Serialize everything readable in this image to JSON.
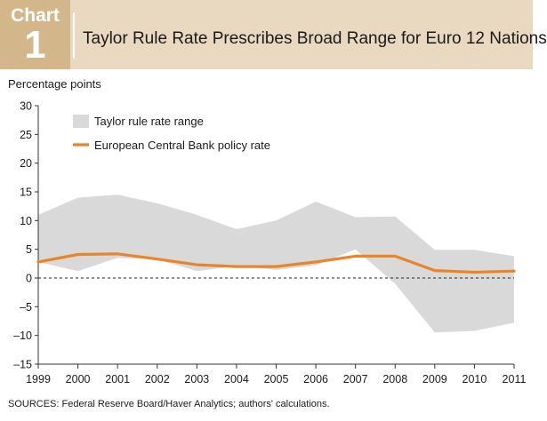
{
  "header": {
    "badge_word": "Chart",
    "badge_number": "1",
    "title": "Taylor Rule Rate Prescribes Broad Range for Euro 12 Nations"
  },
  "footer": {
    "source": "SOURCES: Federal Reserve Board/Haver Analytics; authors' calculations."
  },
  "colors": {
    "header_bg": "#e8d9c0",
    "badge_bg": "#d4b68b",
    "range_fill": "#d9d9d9",
    "policy_line": "#e8852b"
  },
  "chart_data": {
    "type": "area",
    "ylabel": "Percentage points",
    "ylim": [
      -15,
      30
    ],
    "y_ticks": [
      -15,
      -10,
      -5,
      0,
      5,
      10,
      15,
      20,
      25,
      30
    ],
    "y_tick_labels": [
      "–15",
      "–10",
      "–5",
      "0",
      "5",
      "10",
      "15",
      "20",
      "25",
      "30"
    ],
    "x": [
      "1999",
      "2000",
      "2001",
      "2002",
      "2003",
      "2004",
      "2005",
      "2006",
      "2007",
      "2008",
      "2009",
      "2010",
      "2011"
    ],
    "grid": false,
    "zero_line": "dashed",
    "legend_position": "top-left",
    "series": [
      {
        "name": "Taylor rule rate range",
        "kind": "band",
        "upper": [
          11,
          14,
          14.5,
          13,
          11,
          8.5,
          10,
          13.3,
          10.6,
          10.7,
          4.9,
          4.9,
          3.8
        ],
        "lower": [
          2.8,
          1.2,
          3.5,
          3.3,
          1.2,
          2.1,
          1.4,
          2.2,
          5.0,
          -1.0,
          -9.5,
          -9.2,
          -7.8
        ]
      },
      {
        "name": "European Central Bank policy rate",
        "kind": "line",
        "values": [
          2.8,
          4.1,
          4.2,
          3.3,
          2.3,
          2.0,
          2.0,
          2.8,
          3.8,
          3.8,
          1.3,
          1.0,
          1.2
        ]
      }
    ]
  }
}
